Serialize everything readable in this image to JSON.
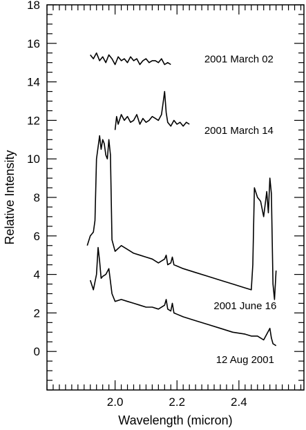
{
  "chart_data": {
    "type": "line",
    "title": "",
    "xlabel": "Wavelength (micron)",
    "ylabel": "Relative Intensity",
    "xlim": [
      1.78,
      2.61
    ],
    "ylim": [
      -2,
      18
    ],
    "x_major_ticks": [
      2.0,
      2.2,
      2.4
    ],
    "x_minor_step": 0.02,
    "y_major_ticks": [
      0,
      2,
      4,
      6,
      8,
      10,
      12,
      14,
      16,
      18
    ],
    "y_minor_step": 0.5,
    "grid": false,
    "legend": "none",
    "line_color": "#000000",
    "series": [
      {
        "label_text": "2001 March 02",
        "label_position": [
          2.4,
          15.0
        ],
        "x": [
          1.92,
          1.93,
          1.94,
          1.95,
          1.96,
          1.97,
          1.98,
          1.99,
          2.0,
          2.01,
          2.02,
          2.03,
          2.04,
          2.05,
          2.06,
          2.07,
          2.08,
          2.09,
          2.1,
          2.11,
          2.12,
          2.13,
          2.14,
          2.15,
          2.16,
          2.17,
          2.18
        ],
        "y": [
          15.4,
          15.2,
          15.5,
          15.1,
          15.3,
          15.0,
          15.4,
          15.2,
          14.9,
          15.3,
          15.1,
          15.2,
          15.0,
          15.3,
          15.1,
          15.2,
          14.9,
          15.1,
          15.2,
          15.0,
          15.1,
          15.1,
          15.0,
          15.2,
          14.9,
          15.0,
          14.9
        ]
      },
      {
        "label_text": "2001 March 14",
        "label_position": [
          2.4,
          11.3
        ],
        "x": [
          2.0,
          2.005,
          2.01,
          2.02,
          2.03,
          2.04,
          2.05,
          2.06,
          2.07,
          2.08,
          2.09,
          2.1,
          2.11,
          2.12,
          2.13,
          2.14,
          2.15,
          2.155,
          2.16,
          2.165,
          2.17,
          2.18,
          2.19,
          2.2,
          2.21,
          2.22,
          2.23,
          2.24
        ],
        "y": [
          11.5,
          12.2,
          11.8,
          12.3,
          12.0,
          12.2,
          11.9,
          12.0,
          12.3,
          11.8,
          12.1,
          11.9,
          12.0,
          12.2,
          12.1,
          12.0,
          12.3,
          12.9,
          13.5,
          12.4,
          11.9,
          11.7,
          12.0,
          11.8,
          11.9,
          11.7,
          11.9,
          11.8
        ]
      },
      {
        "label_text": "2001 June 16",
        "label_position": [
          2.42,
          2.2
        ],
        "x": [
          1.91,
          1.92,
          1.93,
          1.935,
          1.94,
          1.95,
          1.955,
          1.96,
          1.965,
          1.97,
          1.975,
          1.98,
          1.985,
          1.99,
          2.0,
          2.02,
          2.04,
          2.06,
          2.08,
          2.1,
          2.12,
          2.14,
          2.16,
          2.165,
          2.17,
          2.18,
          2.185,
          2.19,
          2.22,
          2.26,
          2.3,
          2.34,
          2.38,
          2.42,
          2.44,
          2.445,
          2.45,
          2.46,
          2.47,
          2.48,
          2.49,
          2.495,
          2.5,
          2.505,
          2.51,
          2.515,
          2.52
        ],
        "y": [
          5.5,
          6.0,
          6.2,
          6.8,
          10.0,
          11.2,
          10.5,
          11.0,
          10.8,
          10.2,
          10.0,
          11.0,
          10.2,
          5.8,
          5.2,
          5.5,
          5.3,
          5.1,
          5.0,
          4.9,
          4.8,
          4.6,
          4.8,
          5.0,
          4.5,
          4.6,
          4.9,
          4.5,
          4.3,
          4.1,
          3.9,
          3.7,
          3.5,
          3.3,
          3.2,
          4.5,
          8.5,
          8.0,
          7.8,
          7.0,
          8.3,
          7.2,
          9.0,
          8.2,
          3.5,
          2.7,
          4.2
        ]
      },
      {
        "label_text": "12 Aug 2001",
        "label_position": [
          2.42,
          -0.6
        ],
        "x": [
          1.92,
          1.93,
          1.94,
          1.945,
          1.95,
          1.955,
          1.96,
          1.97,
          1.98,
          1.99,
          2.0,
          2.02,
          2.04,
          2.06,
          2.08,
          2.1,
          2.12,
          2.14,
          2.16,
          2.165,
          2.17,
          2.18,
          2.185,
          2.19,
          2.22,
          2.26,
          2.3,
          2.34,
          2.38,
          2.42,
          2.44,
          2.46,
          2.48,
          2.49,
          2.5,
          2.505,
          2.51,
          2.52
        ],
        "y": [
          3.7,
          3.2,
          4.0,
          5.4,
          4.7,
          3.8,
          3.9,
          4.0,
          4.3,
          3.0,
          2.6,
          2.7,
          2.6,
          2.5,
          2.4,
          2.3,
          2.3,
          2.2,
          2.4,
          2.7,
          2.2,
          2.1,
          2.5,
          2.0,
          1.8,
          1.6,
          1.4,
          1.2,
          1.0,
          0.9,
          0.8,
          0.8,
          0.6,
          0.9,
          1.2,
          0.7,
          0.4,
          0.3
        ]
      }
    ]
  }
}
